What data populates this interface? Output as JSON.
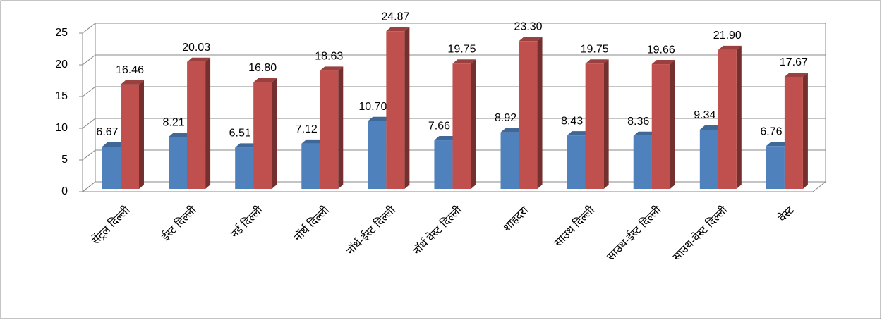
{
  "chart_data": {
    "type": "bar3d",
    "categories": [
      "सेंट्रल दिल्ली",
      "ईस्ट दिल्ली",
      "नई दिल्ली",
      "नॉर्थ दिल्ली",
      "नॉर्थ-ईस्ट दिल्ली",
      "नॉर्थ वेस्ट दिल्ली",
      "शाहदरा",
      "साउथ दिल्ली",
      "साउथ-ईस्ट दिल्ली",
      "साउथ-वेस्ट दिल्ली",
      "वेस्ट"
    ],
    "series": [
      {
        "color": "#4f81bd",
        "values": [
          6.67,
          8.21,
          6.51,
          7.12,
          10.7,
          7.66,
          8.92,
          8.43,
          8.36,
          9.34,
          6.76
        ],
        "value_labels": [
          "6.67",
          "8.21",
          "6.51",
          "7.12",
          "10.70",
          "7.66",
          "8.92",
          "8.43",
          "8.36",
          "9.34",
          "6.76"
        ]
      },
      {
        "color": "#c0504d",
        "values": [
          16.46,
          20.03,
          16.8,
          18.63,
          24.87,
          19.75,
          23.3,
          19.75,
          19.66,
          21.9,
          17.67
        ],
        "value_labels": [
          "16.46",
          "20.03",
          "16.80",
          "18.63",
          "24.87",
          "19.75",
          "23.30",
          "19.75",
          "19.66",
          "21.90",
          "17.67"
        ]
      }
    ],
    "ylim": [
      0,
      25
    ],
    "yticks": [
      0,
      5,
      10,
      15,
      20,
      25
    ],
    "grid": true
  }
}
